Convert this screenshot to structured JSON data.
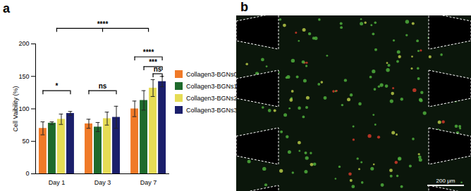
{
  "chart_data": {
    "type": "bar",
    "panel_label": "a",
    "y_label": "Cell Vaibility (%)",
    "categories": [
      "Day 1",
      "Day 3",
      "Day 7"
    ],
    "ylim": [
      0,
      200
    ],
    "yticks": [
      0,
      50,
      100,
      150,
      200
    ],
    "legend": "right",
    "series": [
      {
        "name": "Collagen3-BGNs0",
        "color": "#f07a28",
        "values": [
          70,
          77,
          100
        ],
        "errors": [
          10,
          7,
          12
        ]
      },
      {
        "name": "Collagen3-BGNs1",
        "color": "#1e6a2c",
        "values": [
          78,
          72,
          113
        ],
        "errors": [
          2,
          7,
          15
        ]
      },
      {
        "name": "Collagen3-BGNs2",
        "color": "#e6dc55",
        "values": [
          84,
          85,
          132
        ],
        "errors": [
          8,
          10,
          13
        ]
      },
      {
        "name": "Collagen3-BGNs3",
        "color": "#1b1f6b",
        "values": [
          93,
          87,
          142
        ],
        "errors": [
          3,
          17,
          8
        ]
      }
    ],
    "annotations": [
      {
        "text": "*",
        "from": [
          "Day 1",
          "Collagen3-BGNs0"
        ],
        "to": [
          "Day 1",
          "Collagen3-BGNs3"
        ],
        "y": 128
      },
      {
        "text": "ns",
        "from": [
          "Day 3",
          "Collagen3-BGNs0"
        ],
        "to": [
          "Day 3",
          "Collagen3-BGNs3"
        ],
        "y": 128
      },
      {
        "text": "****",
        "from": [
          "Day 7",
          "Collagen3-BGNs0"
        ],
        "to": [
          "Day 7",
          "Collagen3-BGNs3"
        ],
        "y": 180
      },
      {
        "text": "***",
        "from": [
          "Day 7",
          "Collagen3-BGNs1"
        ],
        "to": [
          "Day 7",
          "Collagen3-BGNs3"
        ],
        "y": 165
      },
      {
        "text": "ns",
        "from": [
          "Day 7",
          "Collagen3-BGNs2"
        ],
        "to": [
          "Day 7",
          "Collagen3-BGNs3"
        ],
        "y": 154
      },
      {
        "text": "****",
        "from": [
          "Day 1"
        ],
        "via": [
          "Day 3"
        ],
        "to": [
          "Day 7"
        ],
        "y": 224
      }
    ],
    "image": {
      "panel_label": "b",
      "scale_bar": "200 μm"
    }
  }
}
